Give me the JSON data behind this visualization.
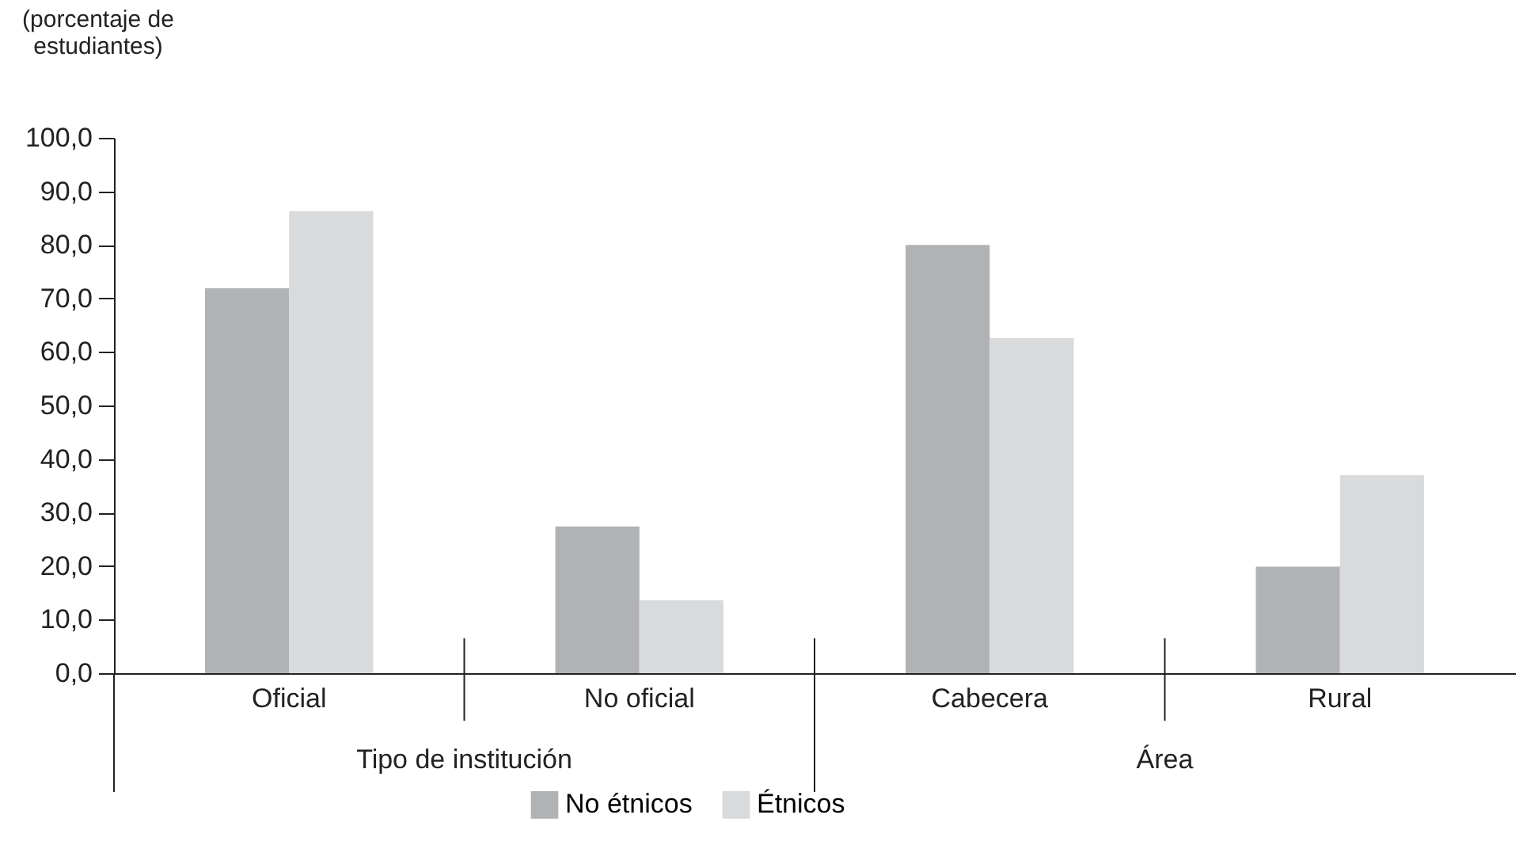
{
  "chart_data": {
    "type": "bar",
    "ylabel": "(porcentaje de estudiantes)",
    "categories": [
      "Oficial",
      "No oficial",
      "Cabecera",
      "Rural"
    ],
    "series": [
      {
        "name": "No étnicos",
        "color": "#b1b2b4",
        "values": [
          71.9,
          27.4,
          80.0,
          19.9
        ]
      },
      {
        "name": "Étnicos",
        "color": "#d9dadc",
        "values": [
          86.3,
          13.6,
          62.6,
          37.0
        ]
      }
    ],
    "ylim": [
      0,
      100
    ],
    "yticks": [
      {
        "value": 0,
        "label": "0,0"
      },
      {
        "value": 10,
        "label": "10,0"
      },
      {
        "value": 20,
        "label": "20,0"
      },
      {
        "value": 30,
        "label": "30,0"
      },
      {
        "value": 40,
        "label": "40,0"
      },
      {
        "value": 50,
        "label": "50,0"
      },
      {
        "value": 60,
        "label": "60,0"
      },
      {
        "value": 70,
        "label": "70,0"
      },
      {
        "value": 80,
        "label": "80,0"
      },
      {
        "value": 90,
        "label": "90,0"
      },
      {
        "value": 100,
        "label": "100,0"
      }
    ],
    "annotations": [
      "Tipo de institución",
      "Área"
    ],
    "grid": false,
    "legend": "bottom"
  }
}
